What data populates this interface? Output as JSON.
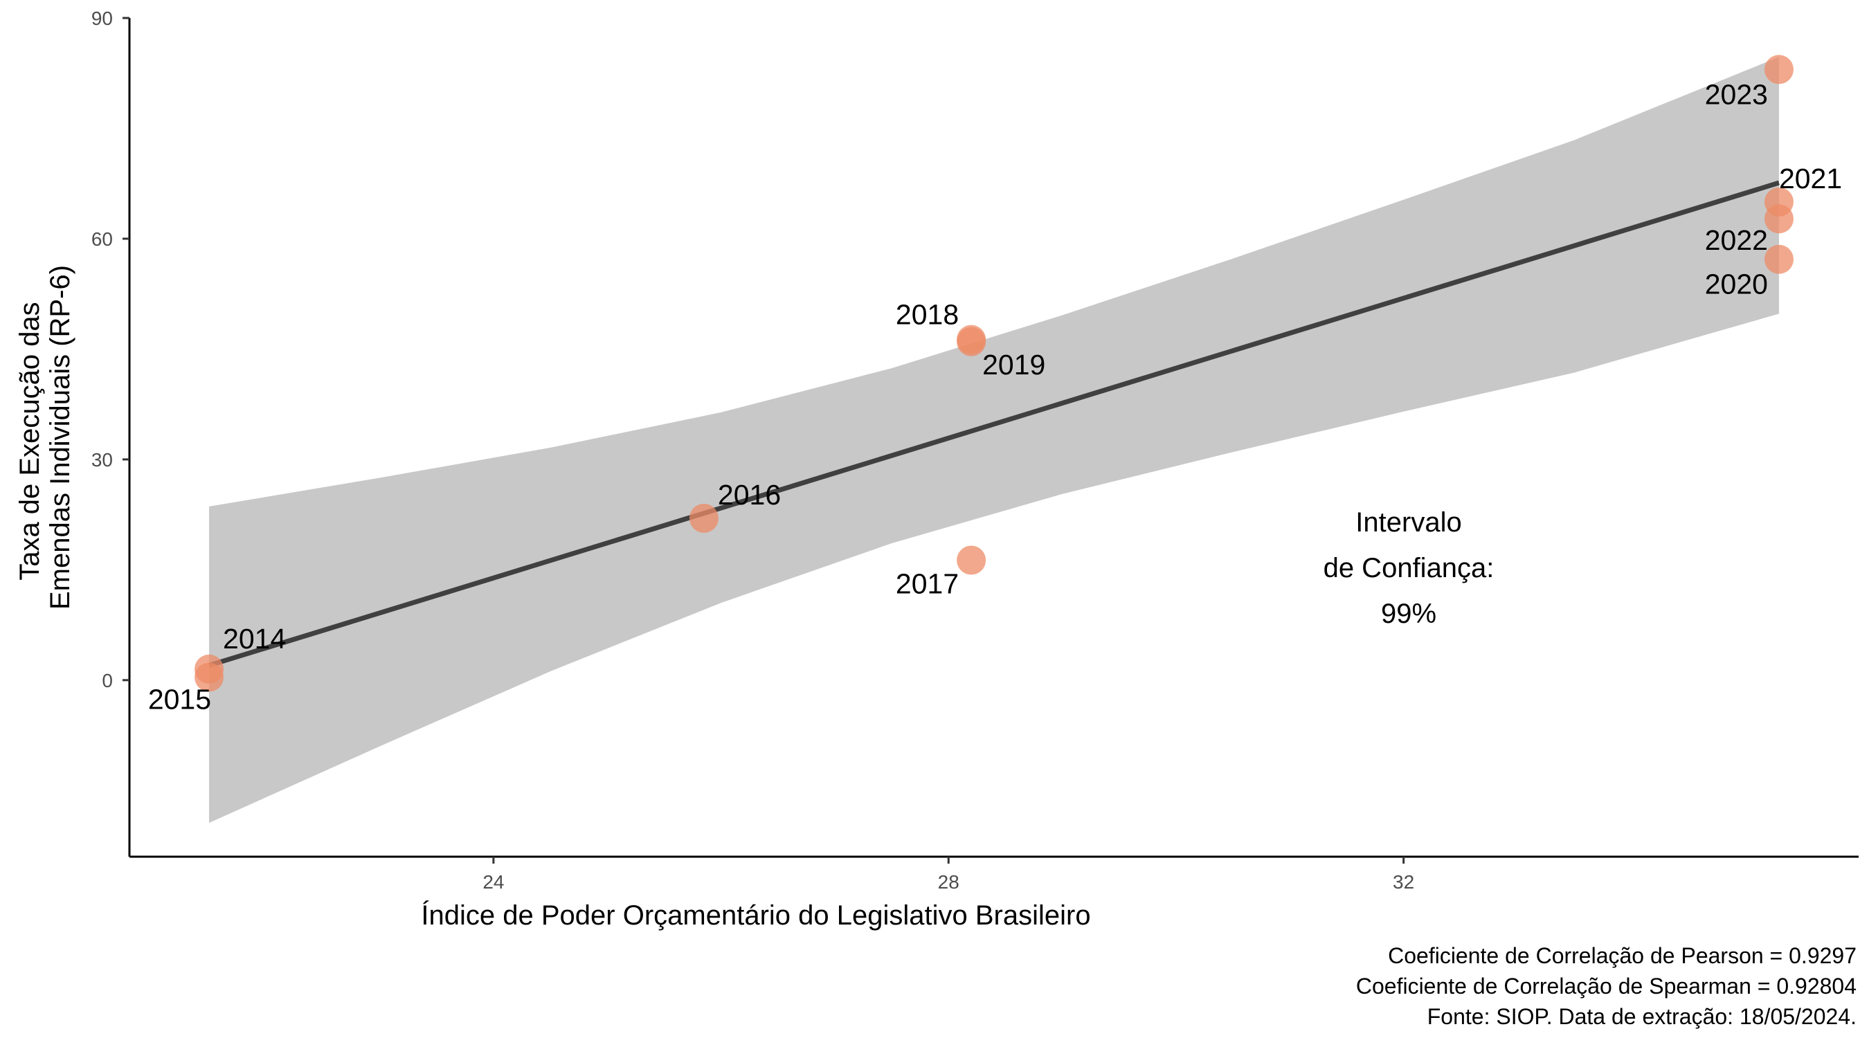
{
  "chart_data": {
    "type": "scatter",
    "title": "",
    "xlabel": "Índice de Poder Orçamentário do Legislativo Brasileiro",
    "ylabel_lines": [
      "Taxa de Execução das",
      "Emendas Individuais (RP-6)"
    ],
    "xlim": [
      20.8,
      36.0
    ],
    "ylim": [
      -24,
      90
    ],
    "x_ticks": [
      24,
      28,
      32
    ],
    "y_ticks": [
      0,
      30,
      60,
      90
    ],
    "grid": false,
    "colors": {
      "point": "#EE8B66",
      "line": "#404040",
      "band": "#C8C8C8"
    },
    "points": [
      {
        "label": "2014",
        "x": 21.5,
        "y": 1.5
      },
      {
        "label": "2015",
        "x": 21.5,
        "y": 0.4
      },
      {
        "label": "2016",
        "x": 25.85,
        "y": 22.0
      },
      {
        "label": "2017",
        "x": 28.2,
        "y": 16.3
      },
      {
        "label": "2018",
        "x": 28.2,
        "y": 46.3
      },
      {
        "label": "2019",
        "x": 28.2,
        "y": 46.0
      },
      {
        "label": "2020",
        "x": 35.3,
        "y": 57.2
      },
      {
        "label": "2021",
        "x": 35.3,
        "y": 65.0
      },
      {
        "label": "2022",
        "x": 35.3,
        "y": 62.7
      },
      {
        "label": "2023",
        "x": 35.3,
        "y": 83.0
      }
    ],
    "regression": {
      "x": [
        21.5,
        35.3
      ],
      "y": [
        2.0,
        67.6
      ]
    },
    "confidence_band": {
      "x": [
        21.5,
        23.0,
        24.5,
        26.0,
        27.5,
        29.0,
        30.5,
        32.0,
        33.5,
        35.3
      ],
      "upper": [
        23.6,
        27.5,
        31.6,
        36.4,
        42.4,
        49.6,
        57.3,
        65.3,
        73.4,
        84.7
      ],
      "lower": [
        -19.4,
        -9.0,
        1.2,
        10.5,
        18.6,
        25.3,
        31.0,
        36.5,
        41.8,
        49.8
      ]
    },
    "annotation": [
      "Intervalo",
      "de Confiança:",
      "99%"
    ],
    "caption": [
      "Coeficiente de Correlação de Pearson = 0.9297",
      "Coeficiente de Correlação de Spearman = 0.92804",
      "Fonte: SIOP. Data de extração: 18/05/2024."
    ]
  }
}
